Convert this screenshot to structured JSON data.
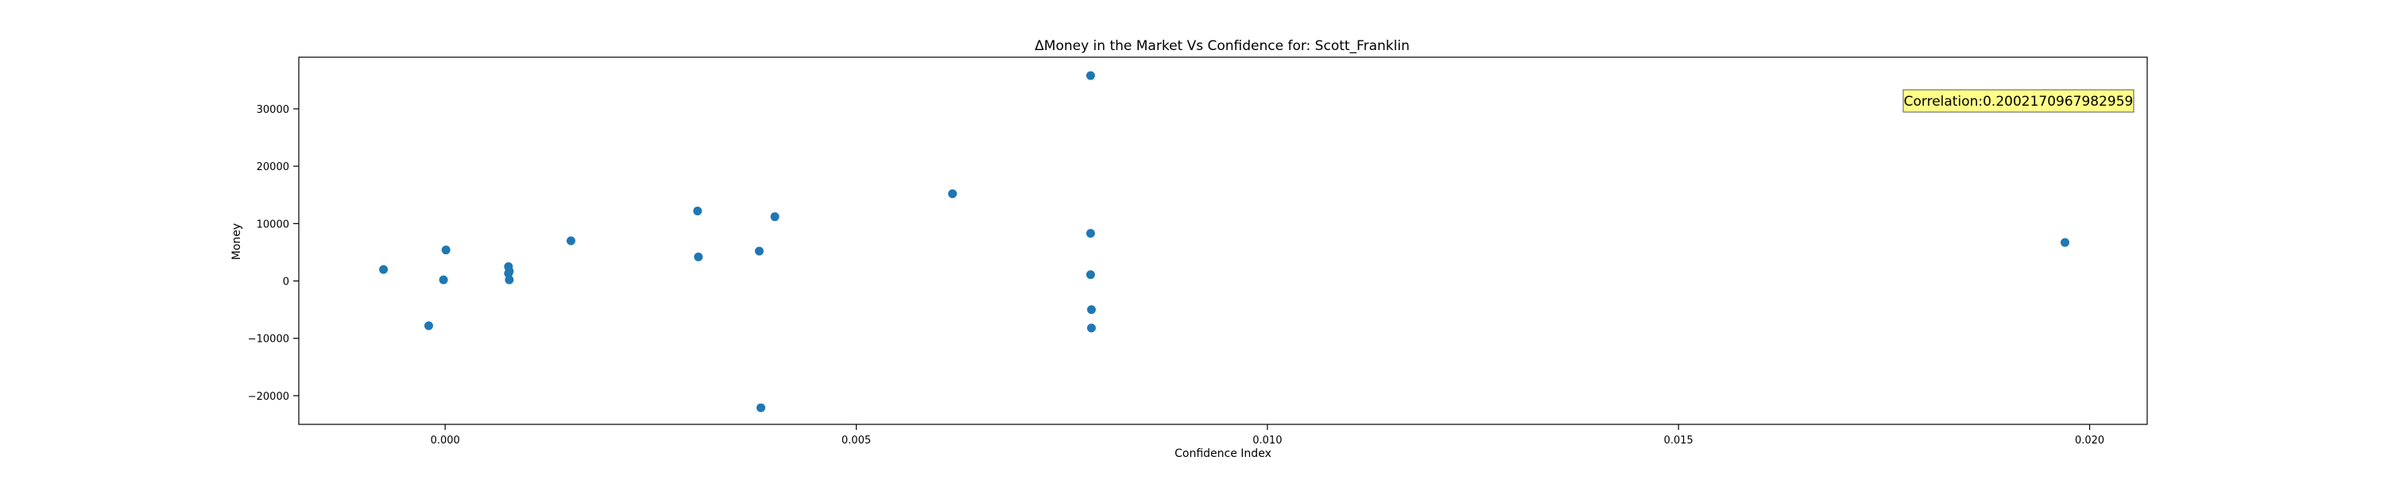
{
  "chart_data": {
    "type": "scatter",
    "title": "ΔMoney in the Market Vs Confidence for: Scott_Franklin",
    "xlabel": "Confidence Index",
    "ylabel": "Money",
    "xlim": [
      -0.00178,
      0.0207
    ],
    "ylim": [
      -25000,
      39000
    ],
    "xticks": [
      0.0,
      0.005,
      0.01,
      0.015,
      0.02
    ],
    "xtick_labels": [
      "0.000",
      "0.005",
      "0.010",
      "0.015",
      "0.020"
    ],
    "yticks": [
      -20000,
      -10000,
      0,
      10000,
      20000,
      30000
    ],
    "ytick_labels": [
      "−20000",
      "−10000",
      "0",
      "10000",
      "20000",
      "30000"
    ],
    "grid": false,
    "legend": "none",
    "series": [
      {
        "color": "#1f77b4",
        "points": [
          {
            "x": -0.00075,
            "y": 2000
          },
          {
            "x": -0.0002,
            "y": -7800
          },
          {
            "x": -2e-05,
            "y": 200
          },
          {
            "x": 1e-05,
            "y": 5400
          },
          {
            "x": 0.00077,
            "y": 2500
          },
          {
            "x": 0.00078,
            "y": 1700
          },
          {
            "x": 0.00077,
            "y": 1300
          },
          {
            "x": 0.00078,
            "y": 200
          },
          {
            "x": 0.00153,
            "y": 7000
          },
          {
            "x": 0.00307,
            "y": 12200
          },
          {
            "x": 0.00308,
            "y": 4200
          },
          {
            "x": 0.00382,
            "y": 5200
          },
          {
            "x": 0.00384,
            "y": -22100
          },
          {
            "x": 0.00401,
            "y": 11200
          },
          {
            "x": 0.00617,
            "y": 15200
          },
          {
            "x": 0.00785,
            "y": 35800
          },
          {
            "x": 0.00785,
            "y": 8300
          },
          {
            "x": 0.00785,
            "y": 1100
          },
          {
            "x": 0.00786,
            "y": -5000
          },
          {
            "x": 0.00786,
            "y": -8200
          },
          {
            "x": 0.0197,
            "y": 6700
          }
        ]
      }
    ],
    "annotation": {
      "text": "Correlation:0.2002170967982959",
      "background": "#ffff88"
    }
  }
}
